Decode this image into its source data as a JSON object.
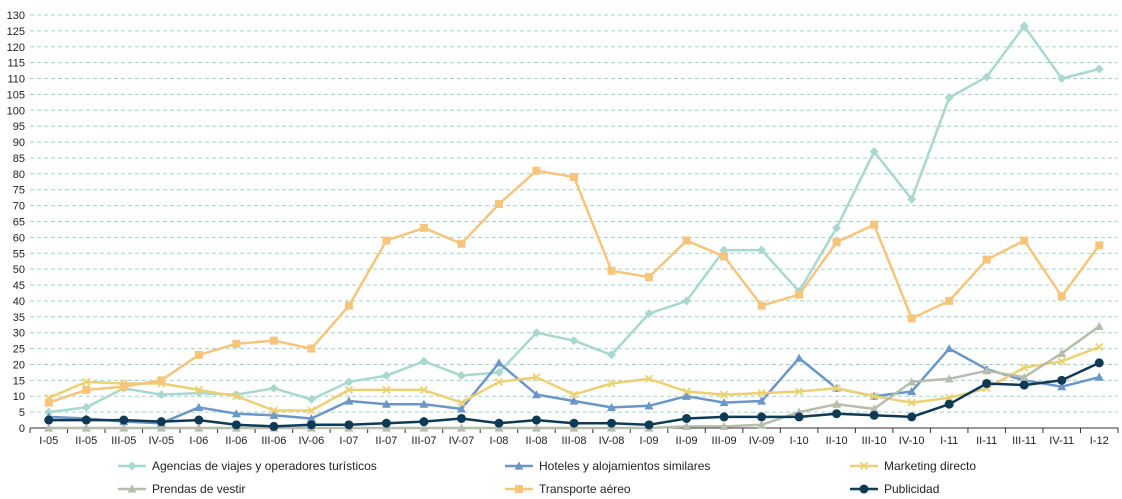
{
  "chart_data": {
    "type": "line",
    "categories": [
      "I-05",
      "II-05",
      "III-05",
      "IV-05",
      "I-06",
      "II-06",
      "III-06",
      "IV-06",
      "I-07",
      "II-07",
      "III-07",
      "IV-07",
      "I-08",
      "II-08",
      "III-08",
      "IV-08",
      "I-09",
      "II-09",
      "III-09",
      "IV-09",
      "I-10",
      "II-10",
      "III-10",
      "IV-10",
      "I-11",
      "II-11",
      "III-11",
      "IV-11",
      "I-12"
    ],
    "ylim": [
      0,
      130
    ],
    "ytick_step": 5,
    "grid": "horizontal dashed",
    "legend_position": "bottom",
    "series": [
      {
        "name": "Agencias de viajes y operadores turísticos",
        "color": "#a8d8cf",
        "marker": "diamond",
        "values": [
          5,
          6.5,
          12.5,
          10.5,
          11,
          10.5,
          12.5,
          9,
          14.5,
          16.5,
          21,
          16.5,
          17.5,
          30,
          27.5,
          23,
          36,
          40,
          56,
          56,
          43,
          63,
          87,
          72,
          104,
          110.5,
          126.5,
          110,
          113
        ]
      },
      {
        "name": "Hoteles y alojamientos similares",
        "color": "#6b96c8",
        "marker": "triangle",
        "values": [
          3.5,
          3,
          2,
          1.5,
          6.5,
          4.5,
          4,
          3,
          8.5,
          7.5,
          7.5,
          6,
          20.5,
          10.5,
          8.5,
          6.5,
          7,
          10,
          8,
          8.5,
          22,
          12.5,
          10,
          11.5,
          25,
          18.5,
          15,
          13,
          16
        ]
      },
      {
        "name": "Marketing directo",
        "color": "#ecd173",
        "marker": "x",
        "values": [
          9.5,
          14.5,
          14,
          14,
          12,
          10,
          5.5,
          5.5,
          12,
          12,
          12,
          8,
          14.5,
          16,
          10.5,
          14,
          15.5,
          11.5,
          10.5,
          11,
          11.5,
          12.5,
          10,
          8,
          9.5,
          12.5,
          19,
          21,
          25.5
        ]
      },
      {
        "name": "Prendas de vestir",
        "color": "#b7bdad",
        "marker": "triangle",
        "values": [
          0,
          0,
          0,
          0,
          0,
          0,
          0,
          0,
          0,
          0,
          0,
          0,
          0,
          0,
          0,
          0,
          0,
          0.5,
          0.5,
          1,
          5,
          7.5,
          6,
          14.5,
          15.5,
          18,
          16,
          23.5,
          32
        ]
      },
      {
        "name": "Transporte aéreo",
        "color": "#f7c47c",
        "marker": "square",
        "values": [
          8,
          12,
          13,
          15,
          23,
          26.5,
          27.5,
          25,
          38.5,
          59,
          63,
          58,
          70.5,
          81,
          79,
          49.5,
          47.5,
          59,
          54,
          38.5,
          42,
          58.5,
          64,
          34.5,
          40,
          53,
          59,
          41.5,
          57.5
        ]
      },
      {
        "name": "Publicidad",
        "color": "#0f3a55",
        "marker": "circle",
        "values": [
          2.5,
          2.5,
          2.5,
          2,
          2.5,
          1,
          0.5,
          1,
          1,
          1.5,
          2,
          3,
          1.5,
          2.5,
          1.5,
          1.5,
          1,
          3,
          3.5,
          3.5,
          3.5,
          4.5,
          4,
          3.5,
          7.5,
          14,
          13.5,
          15,
          20.5
        ]
      }
    ]
  }
}
